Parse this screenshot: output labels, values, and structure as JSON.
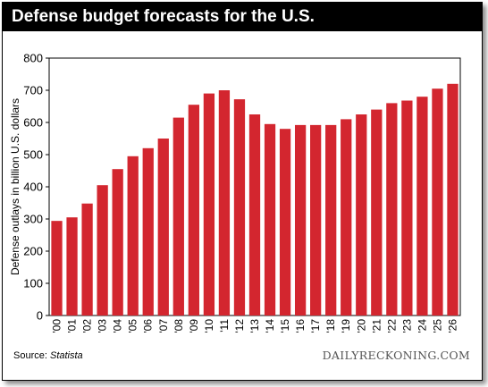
{
  "header": {
    "title": "Defense budget forecasts for the U.S."
  },
  "footer": {
    "source_label": "Source:",
    "source_name": "Statista",
    "brand": "DAILYRECKONING.COM"
  },
  "chart_data": {
    "type": "bar",
    "title": "Defense budget forecasts for the U.S.",
    "ylabel": "Defense outlays in billion U.S. dollars",
    "xlabel": "",
    "categories": [
      "'00",
      "'01",
      "'02",
      "'03",
      "'04",
      "'05",
      "'06",
      "'07",
      "'08",
      "'09",
      "'10",
      "'11",
      "'12",
      "'13",
      "'14",
      "'15",
      "'16",
      "'17",
      "'18",
      "'19",
      "'20",
      "'21",
      "'22",
      "'23",
      "'24",
      "'25",
      "'26"
    ],
    "values": [
      294,
      305,
      348,
      405,
      455,
      495,
      520,
      550,
      615,
      655,
      690,
      700,
      672,
      625,
      595,
      580,
      592,
      592,
      592,
      610,
      625,
      640,
      660,
      668,
      680,
      705,
      720
    ],
    "ylim": [
      0,
      800
    ],
    "yticks": [
      0,
      100,
      200,
      300,
      400,
      500,
      600,
      700,
      800
    ],
    "grid": "none",
    "bar_color": "#d3262f"
  }
}
